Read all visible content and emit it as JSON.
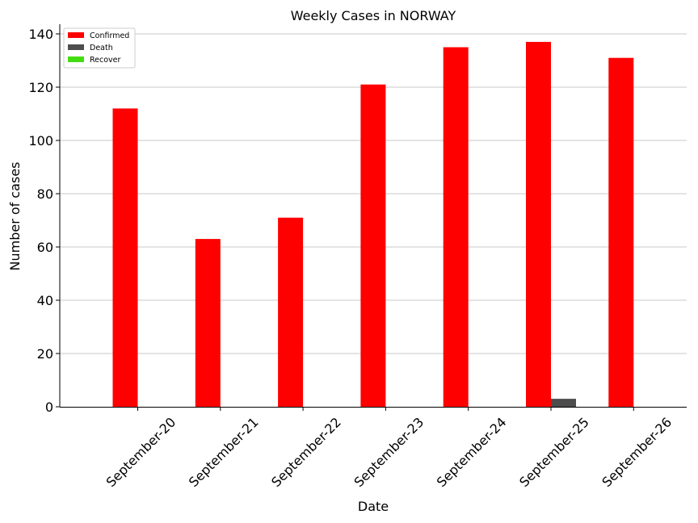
{
  "chart_data": {
    "type": "bar",
    "title": "Weekly Cases in NORWAY",
    "xlabel": "Date",
    "ylabel": "Number of cases",
    "categories": [
      "September-20",
      "September-21",
      "September-22",
      "September-23",
      "September-24",
      "September-25",
      "September-26"
    ],
    "series": [
      {
        "name": "Confirmed",
        "color": "#ff0000",
        "values": [
          112,
          63,
          71,
          121,
          135,
          137,
          131
        ]
      },
      {
        "name": "Death",
        "color": "#4d4d4d",
        "values": [
          0,
          0,
          0,
          0,
          0,
          3,
          0
        ]
      },
      {
        "name": "Recover",
        "color": "#44dd11",
        "values": [
          0,
          0,
          0,
          0,
          0,
          0,
          0
        ]
      }
    ],
    "ylim": [
      0,
      140
    ],
    "yticks": [
      0,
      20,
      40,
      60,
      80,
      100,
      120,
      140
    ],
    "grid": "horizontal",
    "legend_position": "top-left"
  }
}
